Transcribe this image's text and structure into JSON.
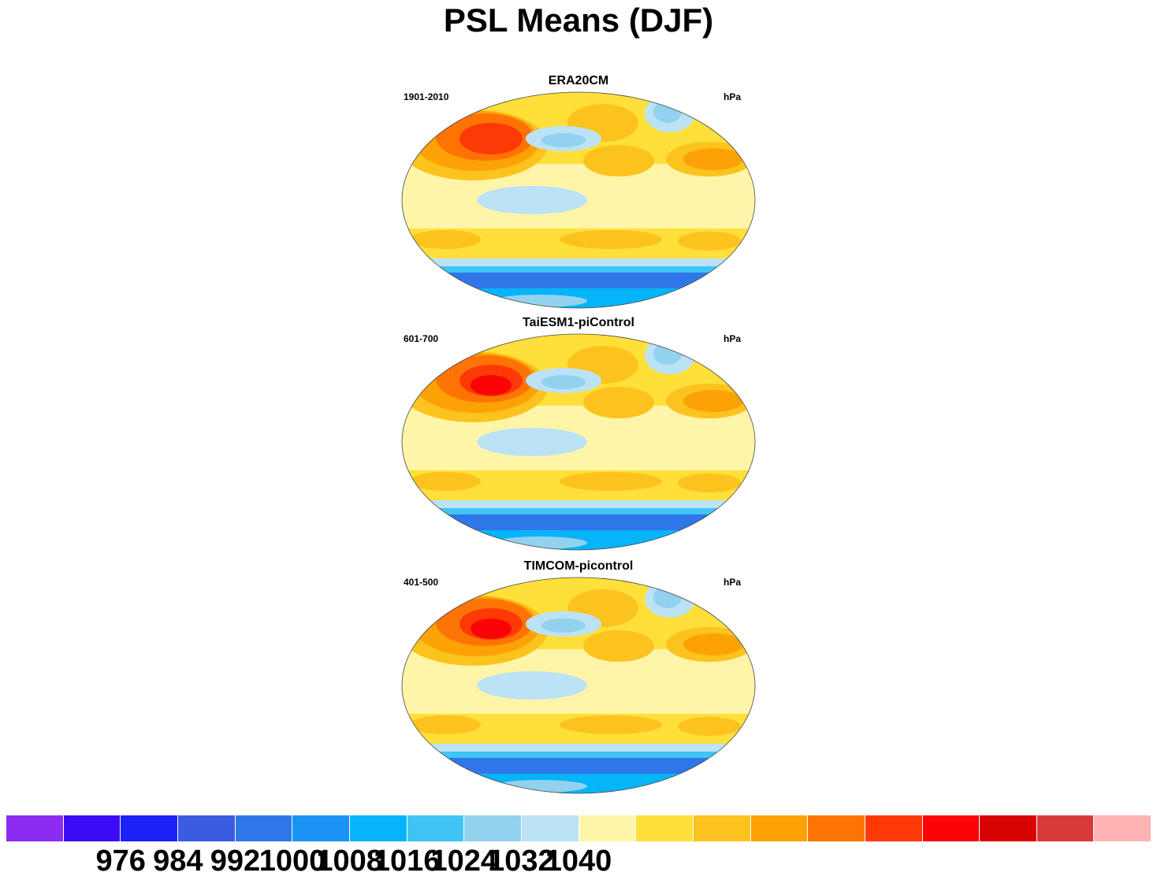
{
  "title": "PSL Means (DJF)",
  "panels": [
    {
      "title": "ERA20CM",
      "period": "1901-2010",
      "units": "hPa"
    },
    {
      "title": "TaiESM1-piControl",
      "period": "601-700",
      "units": "hPa"
    },
    {
      "title": "TIMCOM-picontrol",
      "period": "401-500",
      "units": "hPa"
    }
  ],
  "colorbar": {
    "colors": [
      "#8c2cf2",
      "#3a0bf5",
      "#1a22f5",
      "#3b5be0",
      "#2f76e8",
      "#1b93f5",
      "#06b4fa",
      "#40c4f6",
      "#93d2ee",
      "#bce2f5",
      "#fff5a8",
      "#ffe03a",
      "#fcc21e",
      "#fca205",
      "#fd7405",
      "#fd3a05",
      "#fb0406",
      "#d80303",
      "#d83a3a",
      "#ffb3b3"
    ],
    "labels": [
      "976",
      "984",
      "992",
      "1000",
      "1008",
      "1016",
      "1024",
      "1032",
      "1040"
    ]
  }
}
